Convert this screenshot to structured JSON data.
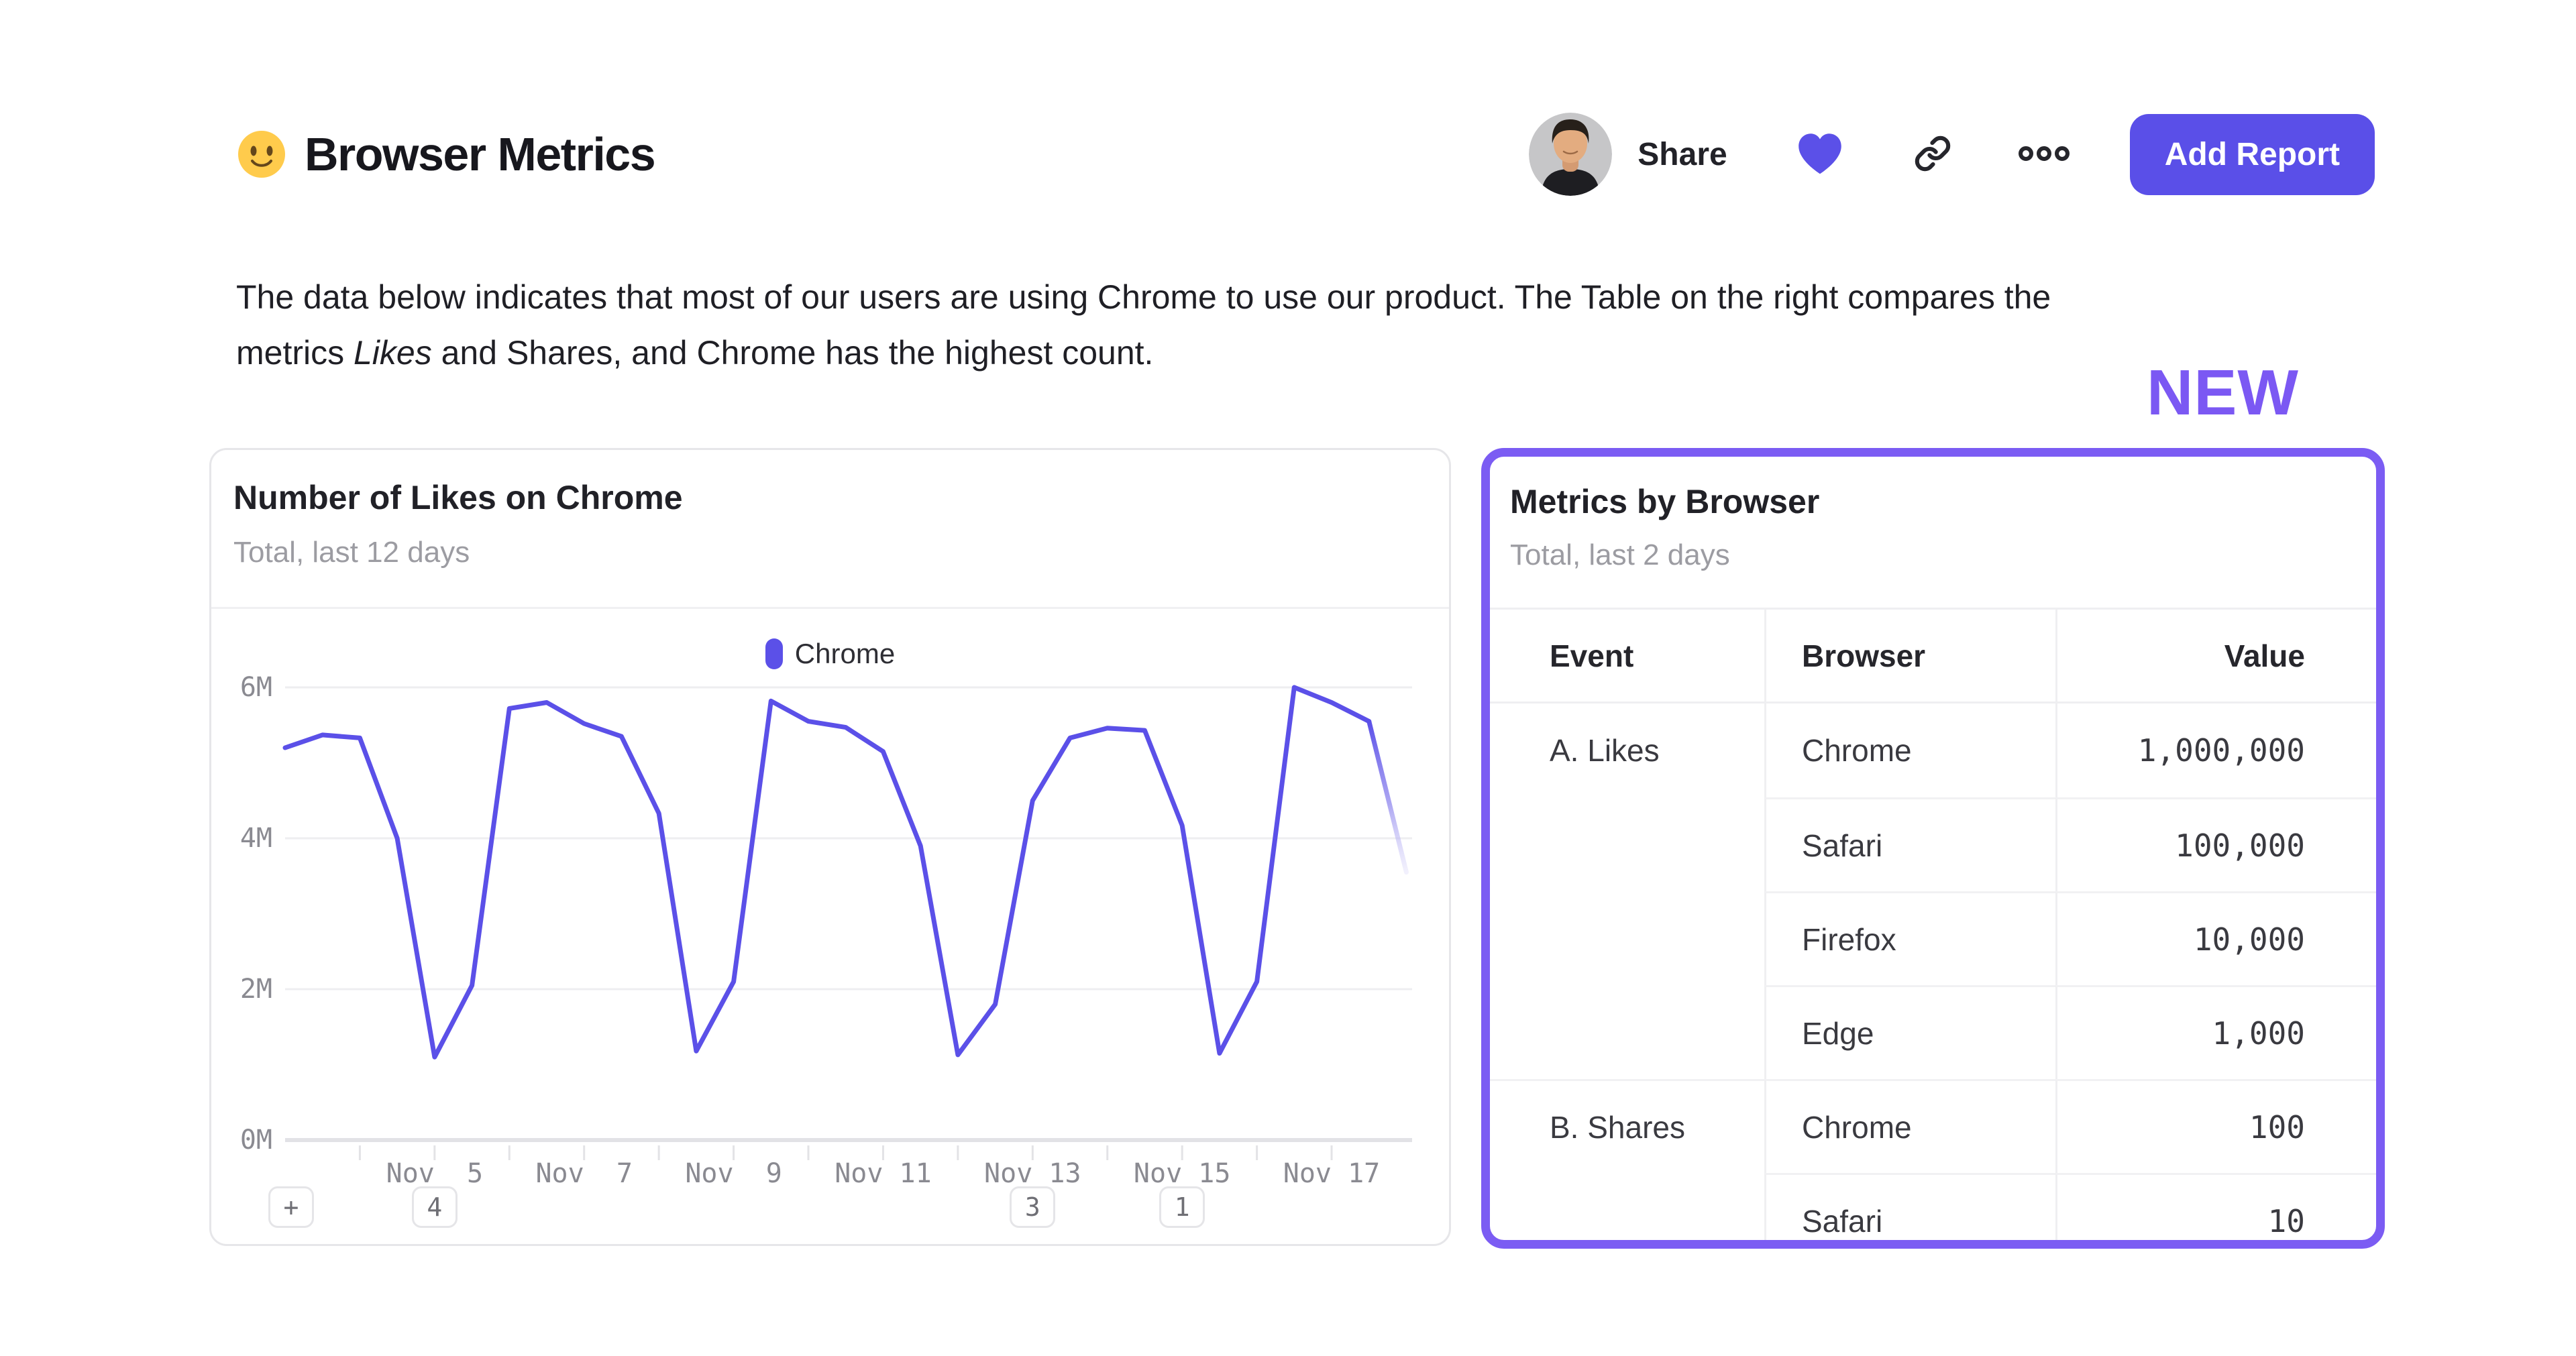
{
  "header": {
    "emoji": "slightly-smiling-face",
    "title": "Browser Metrics",
    "share_label": "Share",
    "add_report_label": "Add Report"
  },
  "description": {
    "line1": "The data below indicates that most of our users are using Chrome to use our product. The Table on the right compares the",
    "line2_pre": "metrics ",
    "line2_italic": "Likes",
    "line2_post": " and Shares, and Chrome has the highest count."
  },
  "new_badge": "NEW",
  "colors": {
    "accent_indigo": "#5B50E8",
    "accent_violet": "#7B5CF3",
    "text_dark": "#212127",
    "text_gray": "#9C9CA2",
    "gridline": "#EEEEF0",
    "axis_line": "#E2E2E6",
    "card_border": "#E6E6E9"
  },
  "chart_card": {
    "title": "Number of Likes on Chrome",
    "subtitle": "Total, last 12 days",
    "legend": [
      {
        "label": "Chrome",
        "color": "#5B50E8"
      }
    ],
    "annotations": {
      "add_label": "+",
      "items": [
        {
          "label": "4",
          "day": 5
        },
        {
          "label": "3",
          "day": 13
        },
        {
          "label": "1",
          "day": 15
        }
      ]
    }
  },
  "chart_data": {
    "type": "line",
    "title": "Number of Likes on Chrome",
    "subtitle": "Total, last 12 days",
    "x_unit": "day of November (half-day resolution)",
    "y_unit": "likes (millions)",
    "xlim": [
      3,
      18
    ],
    "ylim": [
      0,
      6
    ],
    "grid": "horizontal",
    "legend_position": "top-center",
    "y_ticks": [
      {
        "label": "6M",
        "value": 6
      },
      {
        "label": "4M",
        "value": 4
      },
      {
        "label": "2M",
        "value": 2
      },
      {
        "label": "0M",
        "value": 0
      }
    ],
    "x_minor_tick_days": [
      4,
      5,
      6,
      7,
      8,
      9,
      10,
      11,
      12,
      13,
      14,
      15,
      16,
      17
    ],
    "x_tick_labels": [
      {
        "label": "Nov  5",
        "day": 5
      },
      {
        "label": "Nov  7",
        "day": 7
      },
      {
        "label": "Nov  9",
        "day": 9
      },
      {
        "label": "Nov 11",
        "day": 11
      },
      {
        "label": "Nov 13",
        "day": 13
      },
      {
        "label": "Nov 15",
        "day": 15
      },
      {
        "label": "Nov 17",
        "day": 17
      }
    ],
    "series": [
      {
        "name": "Chrome",
        "color": "#5B50E8",
        "incomplete_tail": true,
        "points": [
          [
            3,
            5.2
          ],
          [
            3.5,
            5.37
          ],
          [
            4,
            5.33
          ],
          [
            4.5,
            4.0
          ],
          [
            5,
            1.1
          ],
          [
            5.5,
            2.05
          ],
          [
            6,
            5.72
          ],
          [
            6.5,
            5.8
          ],
          [
            7,
            5.52
          ],
          [
            7.5,
            5.35
          ],
          [
            8,
            4.33
          ],
          [
            8.5,
            1.18
          ],
          [
            9,
            2.1
          ],
          [
            9.5,
            5.82
          ],
          [
            10,
            5.55
          ],
          [
            10.5,
            5.47
          ],
          [
            11,
            5.15
          ],
          [
            11.5,
            3.9
          ],
          [
            12,
            1.13
          ],
          [
            12.5,
            1.8
          ],
          [
            13,
            4.5
          ],
          [
            13.5,
            5.33
          ],
          [
            14,
            5.46
          ],
          [
            14.5,
            5.43
          ],
          [
            15,
            4.17
          ],
          [
            15.5,
            1.15
          ],
          [
            16,
            2.1
          ],
          [
            16.5,
            6.0
          ],
          [
            17,
            5.8
          ],
          [
            17.5,
            5.55
          ],
          [
            18,
            3.55
          ]
        ]
      }
    ]
  },
  "metrics_card": {
    "title": "Metrics by Browser",
    "subtitle": "Total, last 2 days",
    "table": {
      "columns": [
        "Event",
        "Browser",
        "Value"
      ],
      "groups": [
        {
          "event": "A. Likes",
          "rows": [
            [
              "Chrome",
              "1,000,000"
            ],
            [
              "Safari",
              "100,000"
            ],
            [
              "Firefox",
              "10,000"
            ],
            [
              "Edge",
              "1,000"
            ]
          ]
        },
        {
          "event": "B. Shares",
          "rows": [
            [
              "Chrome",
              "100"
            ],
            [
              "Safari",
              "10"
            ]
          ]
        }
      ]
    }
  }
}
